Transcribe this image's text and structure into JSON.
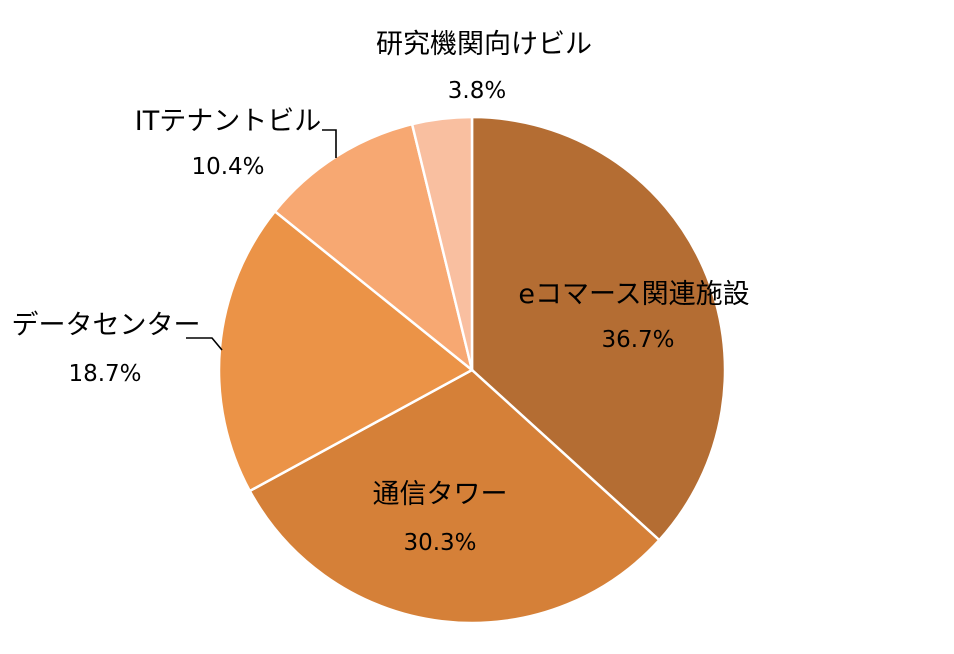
{
  "chart_data": {
    "type": "pie",
    "slices": [
      {
        "label": "eコマース関連施設",
        "value": 36.7,
        "value_label": "36.7%",
        "color": "#B46D33"
      },
      {
        "label": "通信タワー",
        "value": 30.3,
        "value_label": "30.3%",
        "color": "#D58038"
      },
      {
        "label": "データセンター",
        "value": 18.7,
        "value_label": "18.7%",
        "color": "#EB9347"
      },
      {
        "label": "ITテナントビル",
        "value": 10.4,
        "value_label": "10.4%",
        "color": "#F7A872"
      },
      {
        "label": "研究機関向けビル",
        "value": 3.8,
        "value_label": "3.8%",
        "color": "#F9BFA0"
      }
    ],
    "start_angle": "12 o'clock",
    "direction": "clockwise",
    "legend": "none",
    "data_labels": "category name and percentage"
  }
}
